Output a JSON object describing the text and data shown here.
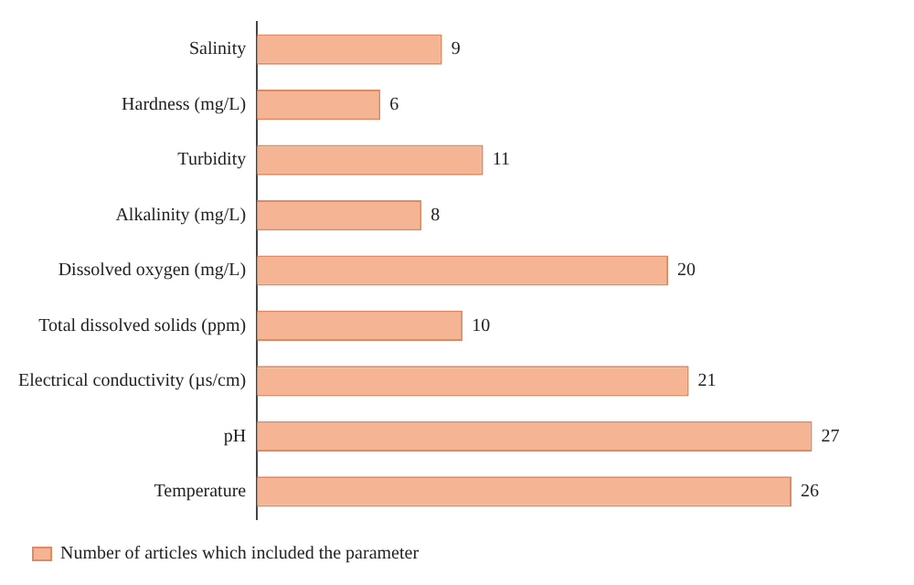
{
  "chart_data": {
    "type": "bar",
    "orientation": "horizontal",
    "categories": [
      "Salinity",
      "Hardness (mg/L)",
      "Turbidity",
      "Alkalinity (mg/L)",
      "Dissolved oxygen (mg/L)",
      "Total dissolved solids (ppm)",
      "Electrical conductivity (µs/cm)",
      "pH",
      "Temperature"
    ],
    "series": [
      {
        "name": "Number of articles which included the parameter",
        "color": "#f5b594",
        "values": [
          9,
          6,
          11,
          8,
          20,
          10,
          21,
          27,
          26
        ]
      }
    ],
    "data_labels": true,
    "legend": "bottom left",
    "grid": false
  }
}
